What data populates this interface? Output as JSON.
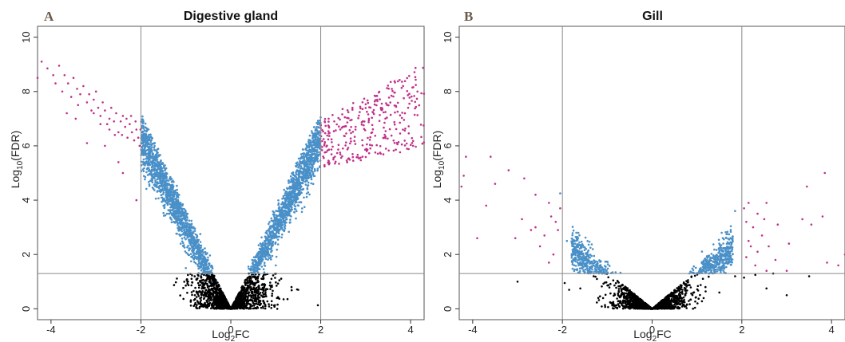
{
  "colors": {
    "not_significant": "#000000",
    "significant_fdr_only": "#4a90c8",
    "significant_fc_and_fdr": "#c0308a",
    "threshold_lines": "#888888",
    "panel_letter": "#6b5a4a"
  },
  "chart_data": [
    {
      "type": "scatter",
      "panel_letter": "A",
      "title": "Digestive gland",
      "xlabel": "Log",
      "xlabel_sub": "2",
      "xlabel_suffix": "FC",
      "ylabel": "Log",
      "ylabel_sub": "10",
      "ylabel_suffix": "(FDR)",
      "xlim": [
        -4.3,
        4.3
      ],
      "ylim": [
        -0.4,
        10.4
      ],
      "xticks": [
        -4,
        -2,
        0,
        2,
        4
      ],
      "yticks": [
        0,
        2,
        4,
        6,
        8,
        10
      ],
      "grid": false,
      "thresholds": {
        "log2fc": [
          -2,
          2
        ],
        "log10fdr": 1.3
      },
      "cloud": {
        "n_gray": 1500,
        "n_blue": 3000,
        "slope": 3.3,
        "spread": 1.4,
        "x_extent": 2.0,
        "seed": 11
      },
      "magenta_points": [
        [
          -4.21,
          9.1
        ],
        [
          -4.08,
          8.85
        ],
        [
          -3.95,
          8.6
        ],
        [
          -3.9,
          8.3
        ],
        [
          -3.82,
          8.95
        ],
        [
          -3.75,
          8.0
        ],
        [
          -3.7,
          8.6
        ],
        [
          -3.62,
          8.3
        ],
        [
          -3.55,
          7.8
        ],
        [
          -3.5,
          8.5
        ],
        [
          -3.42,
          8.1
        ],
        [
          -3.4,
          7.5
        ],
        [
          -3.35,
          7.9
        ],
        [
          -3.28,
          8.2
        ],
        [
          -3.2,
          7.6
        ],
        [
          -3.15,
          7.9
        ],
        [
          -3.1,
          7.3
        ],
        [
          -3.05,
          7.7
        ],
        [
          -3.0,
          8.0
        ],
        [
          -2.95,
          7.4
        ],
        [
          -2.9,
          7.1
        ],
        [
          -2.85,
          7.6
        ],
        [
          -2.8,
          7.3
        ],
        [
          -2.75,
          6.8
        ],
        [
          -2.7,
          7.0
        ],
        [
          -2.66,
          7.4
        ],
        [
          -2.6,
          6.9
        ],
        [
          -2.55,
          7.2
        ],
        [
          -2.5,
          6.5
        ],
        [
          -2.45,
          6.9
        ],
        [
          -2.4,
          7.1
        ],
        [
          -2.35,
          6.7
        ],
        [
          -2.3,
          6.3
        ],
        [
          -2.25,
          6.8
        ],
        [
          -2.2,
          6.5
        ],
        [
          -2.15,
          6.2
        ],
        [
          -2.1,
          6.6
        ],
        [
          -2.06,
          6.3
        ],
        [
          -2.03,
          6.0
        ],
        [
          -2.01,
          6.6
        ],
        [
          -2.12,
          6.9
        ],
        [
          -2.22,
          7.1
        ],
        [
          -2.32,
          7.0
        ],
        [
          -2.42,
          6.4
        ],
        [
          -2.58,
          6.4
        ],
        [
          -2.7,
          6.6
        ],
        [
          -2.9,
          6.8
        ],
        [
          -3.05,
          7.2
        ],
        [
          -3.45,
          7.0
        ],
        [
          -3.2,
          6.1
        ],
        [
          -2.5,
          5.4
        ],
        [
          -2.4,
          5.0
        ],
        [
          -2.1,
          4.0
        ],
        [
          -4.3,
          8.5
        ],
        [
          -3.65,
          7.2
        ],
        [
          -2.8,
          6.0
        ],
        2.05,
        2.1,
        2.15,
        2.2,
        2.25,
        2.3,
        2.35,
        2.4,
        2.45,
        2.5,
        2.55,
        2.6,
        2.65,
        2.7,
        2.75,
        2.8,
        2.85,
        2.9,
        2.95,
        3.0,
        3.05,
        3.1,
        3.15,
        3.2,
        3.25,
        3.3,
        3.35,
        3.4,
        3.45,
        3.5,
        3.55,
        3.6,
        3.65,
        3.7,
        3.75,
        3.8,
        3.85,
        3.9,
        3.95,
        4.0,
        4.05,
        4.1,
        4.15,
        4.2,
        4.25,
        4.3
      ],
      "magenta_right_band": {
        "n": 320,
        "x_range": [
          2.0,
          4.3
        ],
        "y_min_at_2": 5.2,
        "y_max_at_4": 8.8,
        "seed": 23
      },
      "extra_blue_points": [
        [
          -1.0,
          1.5
        ],
        [
          -0.8,
          1.9
        ],
        [
          0.85,
          2.0
        ],
        [
          1.0,
          1.6
        ]
      ],
      "extra_gray_points": [
        [
          -0.95,
          1.0
        ],
        [
          1.5,
          0.7
        ],
        [
          1.35,
          0.8
        ],
        [
          -0.8,
          0.5
        ]
      ]
    },
    {
      "type": "scatter",
      "panel_letter": "B",
      "title": "Gill",
      "xlabel": "Log",
      "xlabel_sub": "2",
      "xlabel_suffix": "FC",
      "ylabel": "Log",
      "ylabel_sub": "10",
      "ylabel_suffix": "(FDR)",
      "xlim": [
        -4.3,
        4.3
      ],
      "ylim": [
        -0.4,
        10.4
      ],
      "xticks": [
        -4,
        -2,
        0,
        2,
        4
      ],
      "yticks": [
        0,
        2,
        4,
        6,
        8,
        10
      ],
      "grid": false,
      "thresholds": {
        "log2fc": [
          -2,
          2
        ],
        "log10fdr": 1.3
      },
      "cloud": {
        "n_gray": 1400,
        "n_blue": 1500,
        "slope": 1.4,
        "spread": 1.0,
        "x_extent": 1.8,
        "seed": 37
      },
      "magenta_points": [
        [
          -4.15,
          5.6
        ],
        [
          -3.6,
          5.6
        ],
        [
          -4.2,
          4.9
        ],
        [
          -3.2,
          5.1
        ],
        [
          -2.85,
          4.8
        ],
        [
          -3.5,
          4.6
        ],
        [
          -2.6,
          4.2
        ],
        [
          -2.3,
          3.9
        ],
        [
          -2.05,
          3.7
        ],
        [
          -3.7,
          3.8
        ],
        [
          -4.25,
          4.5
        ],
        [
          -2.25,
          3.4
        ],
        [
          -2.15,
          3.2
        ],
        [
          -2.6,
          3.0
        ],
        [
          -2.4,
          2.7
        ],
        [
          -3.05,
          2.6
        ],
        [
          -3.9,
          2.6
        ],
        [
          -2.5,
          2.3
        ],
        [
          -2.2,
          2.0
        ],
        [
          -2.3,
          1.7
        ],
        [
          -2.1,
          2.9
        ],
        [
          -2.7,
          2.9
        ],
        [
          -2.9,
          3.3
        ],
        [
          2.05,
          3.7
        ],
        [
          2.15,
          3.9
        ],
        [
          2.35,
          3.5
        ],
        [
          2.55,
          3.9
        ],
        [
          2.1,
          3.2
        ],
        [
          2.25,
          3.0
        ],
        [
          2.45,
          2.7
        ],
        [
          2.8,
          3.1
        ],
        [
          2.15,
          2.5
        ],
        [
          2.35,
          2.1
        ],
        [
          2.6,
          2.3
        ],
        [
          2.1,
          1.9
        ],
        [
          2.3,
          1.6
        ],
        [
          2.55,
          1.4
        ],
        [
          3.05,
          2.4
        ],
        [
          3.35,
          3.3
        ],
        [
          3.8,
          3.4
        ],
        [
          3.55,
          3.1
        ],
        [
          3.85,
          5.0
        ],
        [
          3.45,
          4.5
        ],
        [
          3.9,
          1.7
        ],
        [
          4.15,
          1.6
        ],
        [
          3.0,
          1.4
        ],
        [
          4.3,
          2.0
        ],
        [
          2.75,
          1.8
        ],
        [
          2.2,
          2.3
        ],
        [
          2.5,
          3.3
        ]
      ],
      "magenta_right_band": null,
      "extra_blue_points": [
        [
          -2.05,
          4.25
        ],
        [
          -1.9,
          2.5
        ],
        [
          -1.65,
          2.6
        ],
        [
          1.85,
          3.6
        ],
        [
          1.55,
          2.8
        ]
      ],
      "extra_gray_points": [
        [
          -3.0,
          1.0
        ],
        [
          -1.95,
          0.95
        ],
        [
          -1.6,
          0.75
        ],
        [
          -1.2,
          0.4
        ],
        [
          1.5,
          0.6
        ],
        [
          1.85,
          1.2
        ],
        [
          2.05,
          1.15
        ],
        [
          2.3,
          1.25
        ],
        [
          2.55,
          0.75
        ],
        [
          2.7,
          1.3
        ],
        [
          3.5,
          1.2
        ],
        [
          3.0,
          0.5
        ],
        [
          -1.85,
          0.7
        ]
      ]
    }
  ]
}
